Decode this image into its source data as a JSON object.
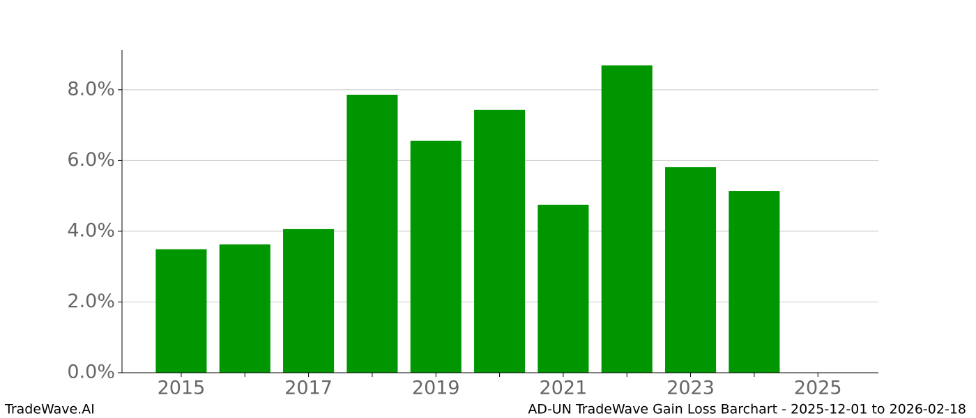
{
  "chart_data": {
    "type": "bar",
    "x": [
      2015,
      2016,
      2017,
      2018,
      2019,
      2020,
      2021,
      2022,
      2023,
      2024
    ],
    "values": [
      3.49,
      3.63,
      4.06,
      7.86,
      6.56,
      7.43,
      4.75,
      8.69,
      5.81,
      5.14
    ],
    "color": "#009600",
    "xlim": [
      2014.07,
      2025.95
    ],
    "xticks": [
      2015,
      2017,
      2019,
      2021,
      2023,
      2025
    ],
    "xminorticks": [
      2016,
      2018,
      2020,
      2022,
      2024
    ],
    "ylim": [
      0,
      9.12
    ],
    "yticks": [
      {
        "value": 0,
        "label": "0.0%"
      },
      {
        "value": 2,
        "label": "2.0%"
      },
      {
        "value": 4,
        "label": "4.0%"
      },
      {
        "value": 6,
        "label": "6.0%"
      },
      {
        "value": 8,
        "label": "8.0%"
      }
    ],
    "grid": true
  },
  "footer": {
    "left": "TradeWave.AI",
    "right": "AD-UN TradeWave Gain Loss Barchart - 2025-12-01 to 2026-02-18"
  }
}
